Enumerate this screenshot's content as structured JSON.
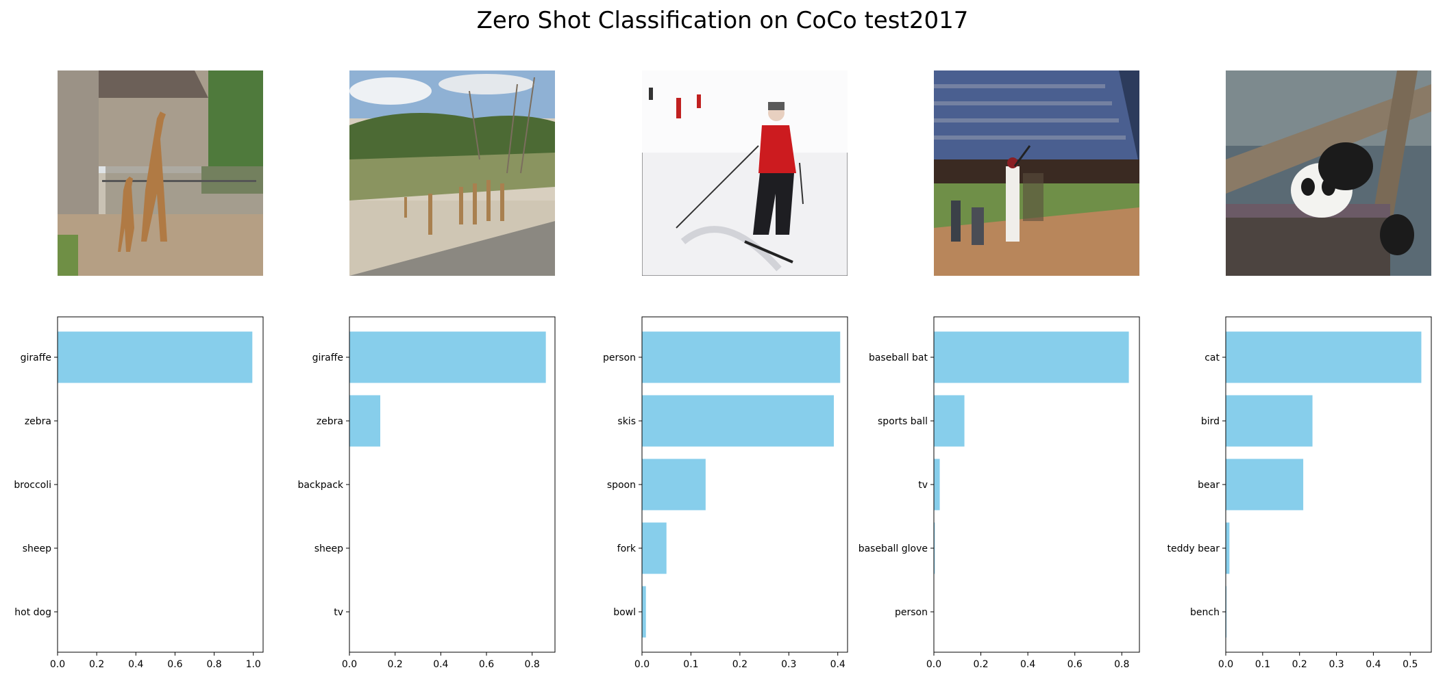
{
  "title": "Zero Shot Classification on CoCo test2017",
  "colors": {
    "bar": "#87ceeb",
    "axis": "#000000"
  },
  "images": [
    {
      "name": "giraffe-zoo-photo",
      "subject": "giraffes in zoo enclosure"
    },
    {
      "name": "giraffe-field-photo",
      "subject": "giraffes in open field"
    },
    {
      "name": "skier-photo",
      "subject": "skier on snow slope"
    },
    {
      "name": "baseball-photo",
      "subject": "baseball batter at stadium"
    },
    {
      "name": "panda-photo",
      "subject": "panda on wooden platform"
    }
  ],
  "chart_data": [
    {
      "type": "bar",
      "orientation": "horizontal",
      "categories": [
        "giraffe",
        "zebra",
        "broccoli",
        "sheep",
        "hot dog"
      ],
      "values": [
        0.995,
        0.002,
        0.001,
        0.001,
        0.001
      ],
      "xlim": [
        0,
        1.05
      ],
      "xticks": [
        "0.0",
        "0.2",
        "0.4",
        "0.6",
        "0.8",
        "1.0"
      ],
      "xtick_values": [
        0,
        0.2,
        0.4,
        0.6,
        0.8,
        1.0
      ]
    },
    {
      "type": "bar",
      "orientation": "horizontal",
      "categories": [
        "giraffe",
        "zebra",
        "backpack",
        "sheep",
        "tv"
      ],
      "values": [
        0.86,
        0.135,
        0.001,
        0.001,
        0.001
      ],
      "xlim": [
        0,
        0.9
      ],
      "xticks": [
        "0.0",
        "0.2",
        "0.4",
        "0.6",
        "0.8"
      ],
      "xtick_values": [
        0,
        0.2,
        0.4,
        0.6,
        0.8
      ]
    },
    {
      "type": "bar",
      "orientation": "horizontal",
      "categories": [
        "person",
        "skis",
        "spoon",
        "fork",
        "bowl"
      ],
      "values": [
        0.405,
        0.392,
        0.13,
        0.05,
        0.008
      ],
      "xlim": [
        0,
        0.42
      ],
      "xticks": [
        "0.0",
        "0.1",
        "0.2",
        "0.3",
        "0.4"
      ],
      "xtick_values": [
        0,
        0.1,
        0.2,
        0.3,
        0.4
      ]
    },
    {
      "type": "bar",
      "orientation": "horizontal",
      "categories": [
        "baseball bat",
        "sports ball",
        "tv",
        "baseball glove",
        "person"
      ],
      "values": [
        0.83,
        0.13,
        0.025,
        0.004,
        0.001
      ],
      "xlim": [
        0,
        0.875
      ],
      "xticks": [
        "0.0",
        "0.2",
        "0.4",
        "0.6",
        "0.8"
      ],
      "xtick_values": [
        0,
        0.2,
        0.4,
        0.6,
        0.8
      ]
    },
    {
      "type": "bar",
      "orientation": "horizontal",
      "categories": [
        "cat",
        "bird",
        "bear",
        "teddy bear",
        "bench"
      ],
      "values": [
        0.53,
        0.235,
        0.21,
        0.01,
        0.002
      ],
      "xlim": [
        0,
        0.557
      ],
      "xticks": [
        "0.0",
        "0.1",
        "0.2",
        "0.3",
        "0.4",
        "0.5"
      ],
      "xtick_values": [
        0,
        0.1,
        0.2,
        0.3,
        0.4,
        0.5
      ]
    }
  ]
}
